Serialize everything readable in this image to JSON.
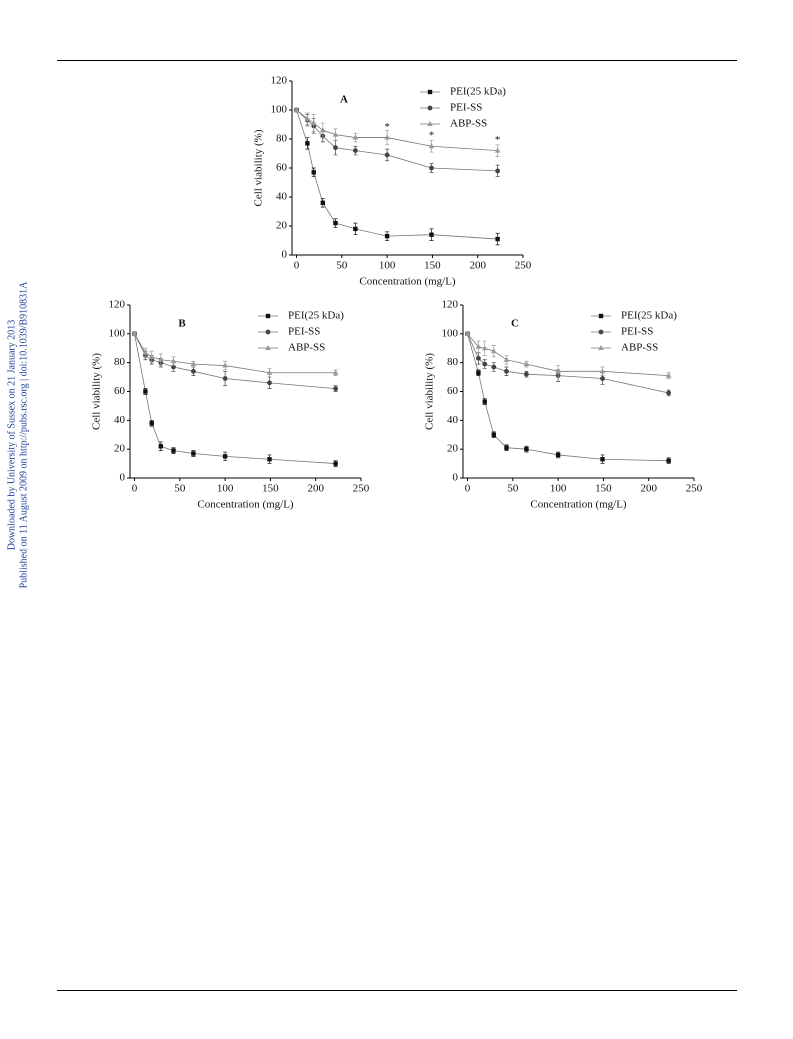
{
  "sidebar": [
    "Downloaded by University of Sussex on 21 January 2013",
    "Published on 11 August 2009 on http://pubs.rsc.org | doi:10.1039/B910831A"
  ],
  "chart_data": [
    {
      "type": "line",
      "label": "A",
      "x_label": "Concentration (mg/L)",
      "y_label": "Cell viability (%)",
      "x": [
        0,
        12,
        19,
        29,
        43,
        65,
        100,
        149,
        222
      ],
      "xlim": [
        -5,
        250
      ],
      "xticks": [
        0,
        50,
        100,
        150,
        200,
        250
      ],
      "ylim": [
        0,
        120
      ],
      "yticks": [
        0,
        20,
        40,
        60,
        80,
        100,
        120
      ],
      "legend": "upper right",
      "series": [
        {
          "name": "PEI(25 kDa)",
          "color": "#111111",
          "marker": "square",
          "values": [
            100,
            77,
            57,
            36,
            22,
            18,
            13,
            14,
            11
          ],
          "errors": [
            1,
            4,
            3,
            3,
            3,
            4,
            3,
            4,
            4
          ]
        },
        {
          "name": "PEI-SS",
          "color": "#444444",
          "marker": "circle",
          "values": [
            100,
            93,
            89,
            82,
            74,
            72,
            69,
            60,
            58
          ],
          "errors": [
            1,
            4,
            5,
            4,
            5,
            3,
            4,
            3,
            4
          ]
        },
        {
          "name": "ABP-SS",
          "color": "#999999",
          "marker": "triangle",
          "values": [
            100,
            94,
            91,
            86,
            83,
            81,
            81,
            75,
            72
          ],
          "errors": [
            1,
            4,
            6,
            5,
            4,
            3,
            5,
            4,
            4
          ]
        }
      ],
      "annotations": [
        {
          "text": "*",
          "x": 100,
          "y": 88
        },
        {
          "text": "*",
          "x": 149,
          "y": 82
        },
        {
          "text": "*",
          "x": 222,
          "y": 79
        }
      ]
    },
    {
      "type": "line",
      "label": "B",
      "x_label": "Concentration (mg/L)",
      "y_label": "Cell viability (%)",
      "x": [
        0,
        12,
        19,
        29,
        43,
        65,
        100,
        149,
        222
      ],
      "xlim": [
        -5,
        250
      ],
      "xticks": [
        0,
        50,
        100,
        150,
        200,
        250
      ],
      "ylim": [
        0,
        120
      ],
      "yticks": [
        0,
        20,
        40,
        60,
        80,
        100,
        120
      ],
      "legend": "upper right",
      "series": [
        {
          "name": "PEI(25 kDa)",
          "color": "#111111",
          "marker": "square",
          "values": [
            100,
            60,
            38,
            22,
            19,
            17,
            15,
            13,
            10
          ],
          "errors": [
            1,
            2,
            2,
            3,
            2,
            2,
            3,
            3,
            2
          ]
        },
        {
          "name": "PEI-SS",
          "color": "#444444",
          "marker": "circle",
          "values": [
            100,
            85,
            82,
            80,
            77,
            74,
            69,
            66,
            62
          ],
          "errors": [
            1,
            3,
            3,
            3,
            3,
            3,
            5,
            4,
            2
          ]
        },
        {
          "name": "ABP-SS",
          "color": "#999999",
          "marker": "triangle",
          "values": [
            100,
            87,
            84,
            82,
            81,
            79,
            78,
            73,
            73
          ],
          "errors": [
            1,
            3,
            4,
            4,
            3,
            2,
            3,
            3,
            2
          ]
        }
      ]
    },
    {
      "type": "line",
      "label": "C",
      "x_label": "Concentration (mg/L)",
      "y_label": "Cell viability (%)",
      "x": [
        0,
        12,
        19,
        29,
        43,
        65,
        100,
        149,
        222
      ],
      "xlim": [
        -5,
        250
      ],
      "xticks": [
        0,
        50,
        100,
        150,
        200,
        250
      ],
      "ylim": [
        0,
        120
      ],
      "yticks": [
        0,
        20,
        40,
        60,
        80,
        100,
        120
      ],
      "legend": "upper right",
      "series": [
        {
          "name": "PEI(25 kDa)",
          "color": "#111111",
          "marker": "square",
          "values": [
            100,
            73,
            53,
            30,
            21,
            20,
            16,
            13,
            12
          ],
          "errors": [
            1,
            2,
            2,
            2,
            2,
            2,
            2,
            3,
            2
          ]
        },
        {
          "name": "PEI-SS",
          "color": "#444444",
          "marker": "circle",
          "values": [
            100,
            83,
            79,
            77,
            74,
            72,
            71,
            69,
            59
          ],
          "errors": [
            1,
            4,
            3,
            3,
            3,
            2,
            4,
            4,
            2
          ]
        },
        {
          "name": "ABP-SS",
          "color": "#999999",
          "marker": "triangle",
          "values": [
            100,
            91,
            90,
            88,
            82,
            79,
            74,
            74,
            71
          ],
          "errors": [
            1,
            4,
            5,
            4,
            3,
            2,
            4,
            3,
            2
          ]
        }
      ]
    }
  ]
}
